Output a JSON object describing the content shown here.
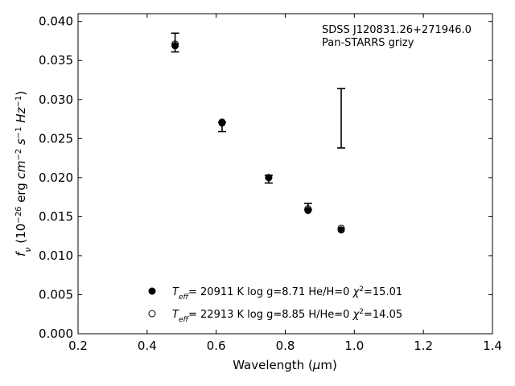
{
  "chart_data": {
    "type": "scatter",
    "xlabel": "Wavelength (μm)",
    "ylabel": "f_ν (10^-26 erg cm^-2 s^-1 Hz^-1)",
    "xlim": [
      0.2,
      1.4
    ],
    "ylim": [
      0.0,
      0.041
    ],
    "x_ticks": [
      "0.2",
      "0.4",
      "0.6",
      "0.8",
      "1.0",
      "1.2",
      "1.4"
    ],
    "y_ticks": [
      "0.000",
      "0.005",
      "0.010",
      "0.015",
      "0.020",
      "0.025",
      "0.030",
      "0.035",
      "0.040"
    ],
    "annotation": [
      "SDSS J120831.26+271946.0",
      "Pan-STARRS grizy"
    ],
    "observed": {
      "x": [
        0.481,
        0.617,
        0.752,
        0.866,
        0.962
      ],
      "y": [
        0.0373,
        0.0265,
        0.0198,
        0.0163,
        0.0276
      ],
      "yerr": [
        0.0012,
        0.0006,
        0.0005,
        0.0004,
        0.0038
      ]
    },
    "series": [
      {
        "name": "T_eff= 20911 K  log g=8.71  He/H=0  χ²=15.01",
        "marker": "filled-circle",
        "x": [
          0.481,
          0.617,
          0.752,
          0.866,
          0.962
        ],
        "y": [
          0.0369,
          0.027,
          0.02,
          0.0158,
          0.0133
        ]
      },
      {
        "name": "T_eff= 22913 K  log g=8.85  H/He=0  χ²=14.05",
        "marker": "open-circle",
        "x": [
          0.481,
          0.617,
          0.752,
          0.866,
          0.962
        ],
        "y": [
          0.0371,
          0.0271,
          0.02,
          0.016,
          0.0135
        ]
      }
    ],
    "legend": [
      {
        "marker": "filled-circle",
        "teff": "20911",
        "logg": "8.71",
        "ratio": "He/H=0",
        "chi2": "15.01"
      },
      {
        "marker": "open-circle",
        "teff": "22913",
        "logg": "8.85",
        "ratio": "H/He=0",
        "chi2": "14.05"
      }
    ],
    "legend_position": "lower-center",
    "grid": false
  }
}
